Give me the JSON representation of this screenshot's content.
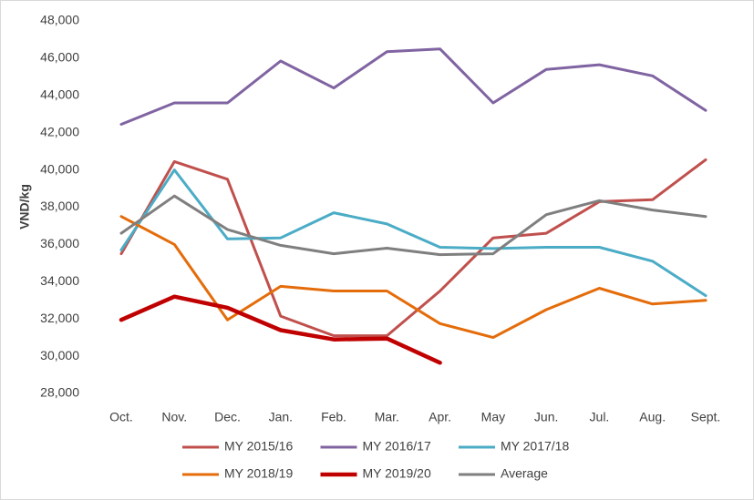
{
  "chart_data": {
    "type": "line",
    "y_label": "VND/kg",
    "categories": [
      "Oct.",
      "Nov.",
      "Dec.",
      "Jan.",
      "Feb.",
      "Mar.",
      "Apr.",
      "May",
      "Jun.",
      "Jul.",
      "Aug.",
      "Sept."
    ],
    "ylim": [
      28000,
      48000
    ],
    "yticks": [
      {
        "value": 28000,
        "label": "28,000"
      },
      {
        "value": 30000,
        "label": "30,000"
      },
      {
        "value": 32000,
        "label": "32,000"
      },
      {
        "value": 34000,
        "label": "34,000"
      },
      {
        "value": 36000,
        "label": "36,000"
      },
      {
        "value": 38000,
        "label": "38,000"
      },
      {
        "value": 40000,
        "label": "40,000"
      },
      {
        "value": 42000,
        "label": "42,000"
      },
      {
        "value": 44000,
        "label": "44,000"
      },
      {
        "value": 46000,
        "label": "46,000"
      },
      {
        "value": 48000,
        "label": "48,000"
      }
    ],
    "grid": false,
    "legend": "bottom",
    "series": [
      {
        "name": "MY 2015/16",
        "color": "#c0504d",
        "line_width": 3,
        "values": [
          35500,
          40450,
          39500,
          32150,
          31100,
          31100,
          33500,
          36350,
          36600,
          38300,
          38400,
          40550
        ]
      },
      {
        "name": "MY 2016/17",
        "color": "#8064a2",
        "line_width": 3,
        "values": [
          42450,
          43600,
          43600,
          45850,
          44400,
          46350,
          46500,
          43600,
          45400,
          45650,
          45050,
          43200
        ]
      },
      {
        "name": "MY 2017/18",
        "color": "#4bacc6",
        "line_width": 3,
        "values": [
          35700,
          40000,
          36300,
          36350,
          37700,
          37100,
          35850,
          35780,
          35850,
          35850,
          35100,
          33250
        ]
      },
      {
        "name": "MY 2018/19",
        "color": "#e46c0a",
        "line_width": 3,
        "values": [
          37500,
          36000,
          31950,
          33750,
          33500,
          33500,
          31750,
          31000,
          32500,
          33650,
          32800,
          33000
        ]
      },
      {
        "name": "MY 2019/20",
        "color": "#c00000",
        "line_width": 4.5,
        "values": [
          31950,
          33200,
          32600,
          31400,
          30900,
          30950,
          29650,
          null,
          null,
          null,
          null,
          null
        ]
      },
      {
        "name": "Average",
        "color": "#7f7f7f",
        "line_width": 3,
        "values": [
          36600,
          38600,
          36800,
          35950,
          35500,
          35800,
          35450,
          35500,
          37600,
          38350,
          37850,
          37500
        ]
      }
    ]
  }
}
